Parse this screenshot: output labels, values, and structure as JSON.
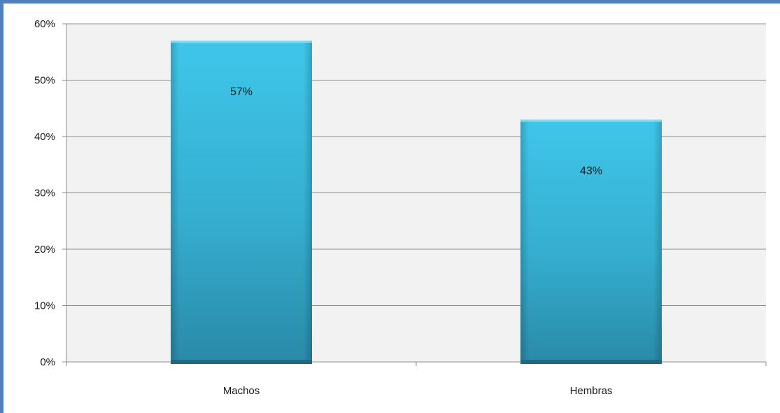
{
  "chart_data": {
    "type": "bar",
    "title": "",
    "xlabel": "",
    "ylabel": "",
    "categories": [
      "Machos",
      "Hembras"
    ],
    "values": [
      57,
      43
    ],
    "value_labels": [
      "57%",
      "43%"
    ],
    "ylim": [
      0,
      60
    ],
    "yticks": [
      0,
      10,
      20,
      30,
      40,
      50,
      60
    ],
    "ytick_labels": [
      "0%",
      "10%",
      "20%",
      "30%",
      "40%",
      "50%",
      "60%"
    ],
    "grid": true,
    "legend": "none",
    "colors": {
      "bar_top": "#3fc6ea",
      "bar_mid": "#35aed0",
      "bar_bottom": "#2a8aa8",
      "plot_background": "#f2f2f2",
      "gridline": "#8c8c8c",
      "frame": "#4f81bd"
    }
  }
}
